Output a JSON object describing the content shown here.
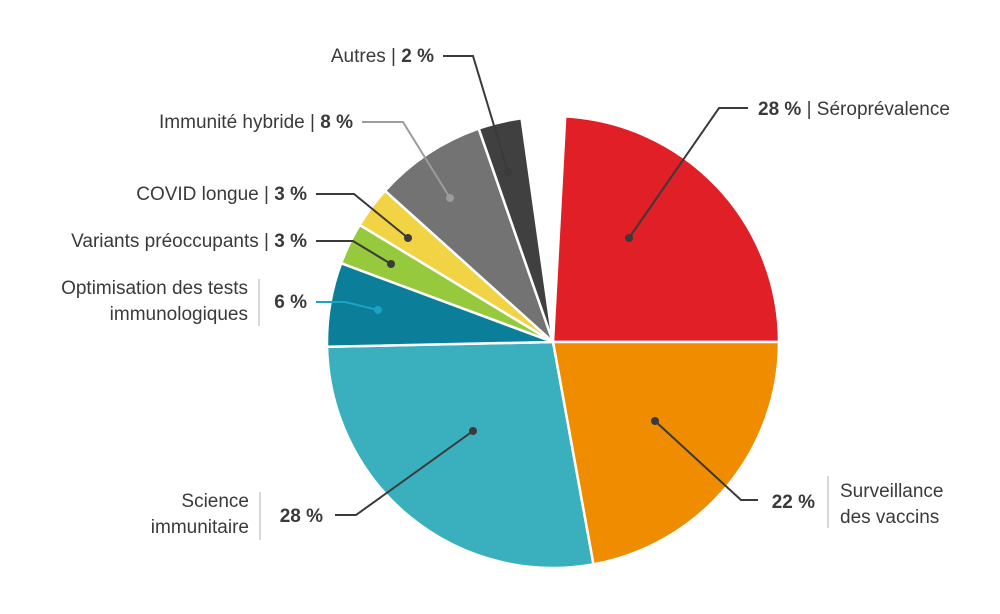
{
  "chart_data": {
    "type": "pie",
    "slices": [
      {
        "name": "Séroprévalence",
        "value": 28,
        "label": "28 %",
        "color": "#e01f26"
      },
      {
        "name": "Surveillance des vaccins",
        "value": 22,
        "label": "22 %",
        "color": "#f08c00"
      },
      {
        "name": "Science immunitaire",
        "value": 28,
        "label": "28 %",
        "color": "#3aafbd"
      },
      {
        "name": "Optimisation des tests immunologiques",
        "value": 6,
        "label": "6 %",
        "color": "#0b7f99"
      },
      {
        "name": "Variants préoccupants",
        "value": 3,
        "label": "3 %",
        "color": "#97c93c"
      },
      {
        "name": "COVID longue",
        "value": 3,
        "label": "3 %",
        "color": "#f2d343"
      },
      {
        "name": "Immunité hybride",
        "value": 8,
        "label": "8 %",
        "color": "#737373"
      },
      {
        "name": "Autres",
        "value": 2,
        "label": "2 %",
        "color": "#404040"
      }
    ],
    "label_lines": {
      "Séroprévalence": [
        "Séroprévalence"
      ],
      "Surveillance des vaccins": [
        "Surveillance",
        "des vaccins"
      ],
      "Science immunitaire": [
        "Science",
        "immunitaire"
      ],
      "Optimisation des tests immunologiques": [
        "Optimisation des tests",
        "immunologiques"
      ],
      "Variants préoccupants": [
        "Variants préoccupants"
      ],
      "COVID longue": [
        "COVID longue"
      ],
      "Immunité hybride": [
        "Immunité hybride"
      ],
      "Autres": [
        "Autres"
      ]
    }
  }
}
